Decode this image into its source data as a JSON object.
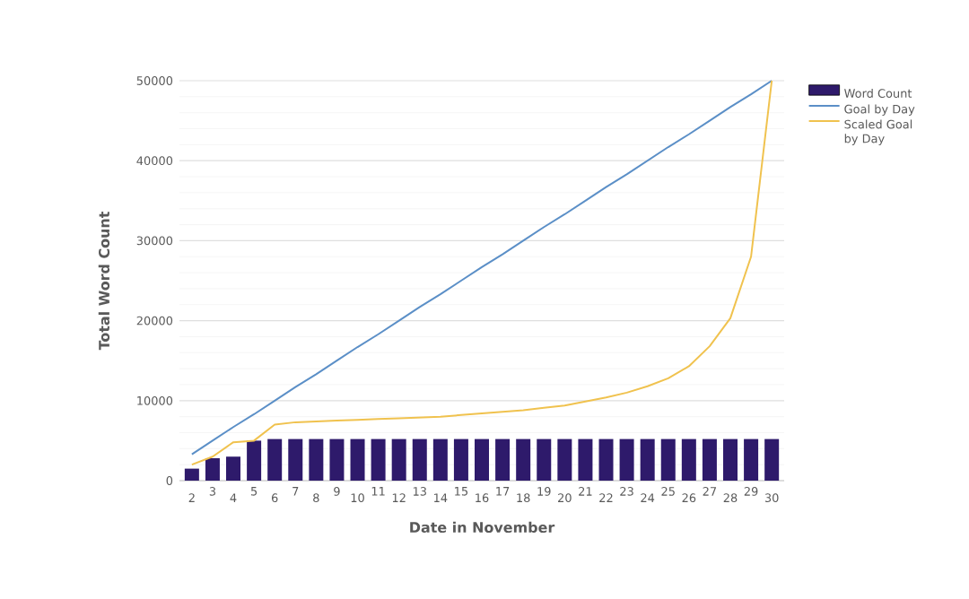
{
  "chart_data": {
    "type": "bar",
    "xlabel": "Date in November",
    "ylabel": "Total Word Count",
    "categories": [
      "2",
      "3",
      "4",
      "5",
      "6",
      "7",
      "8",
      "9",
      "10",
      "11",
      "12",
      "13",
      "14",
      "15",
      "16",
      "17",
      "18",
      "19",
      "20",
      "21",
      "22",
      "23",
      "24",
      "25",
      "26",
      "27",
      "28",
      "29",
      "30"
    ],
    "series": [
      {
        "name": "Word Count",
        "color": "#2e1a6b",
        "values": [
          1500,
          2800,
          3000,
          5000,
          5200,
          5200,
          5200,
          5200,
          5200,
          5200,
          5200,
          5200,
          5200,
          5200,
          5200,
          5200,
          5200,
          5200,
          5200,
          5200,
          5200,
          5200,
          5200,
          5200,
          5200,
          5200,
          5200,
          5200,
          5200
        ]
      },
      {
        "name": "Goal by Day",
        "type": "line",
        "color": "#5b8fc7",
        "values": [
          3300,
          5000,
          6700,
          8300,
          10000,
          11700,
          13300,
          15000,
          16700,
          18300,
          20000,
          21700,
          23300,
          25000,
          26700,
          28300,
          30000,
          31700,
          33300,
          35000,
          36700,
          38300,
          40000,
          41700,
          43300,
          45000,
          46700,
          48300,
          50000
        ]
      },
      {
        "name": "Scaled Goal by Day",
        "type": "line",
        "color": "#f0c24e",
        "values": [
          2000,
          3000,
          4800,
          5000,
          7000,
          7300,
          7400,
          7500,
          7600,
          7700,
          7800,
          7900,
          8000,
          8200,
          8400,
          8600,
          8800,
          9100,
          9400,
          9900,
          10400,
          11000,
          11800,
          12800,
          14300,
          16800,
          20300,
          28000,
          50000
        ]
      }
    ],
    "ylim": [
      0,
      50000
    ],
    "yticks": [
      0,
      10000,
      20000,
      30000,
      40000,
      50000
    ],
    "grid": "y",
    "legend": "top right"
  }
}
